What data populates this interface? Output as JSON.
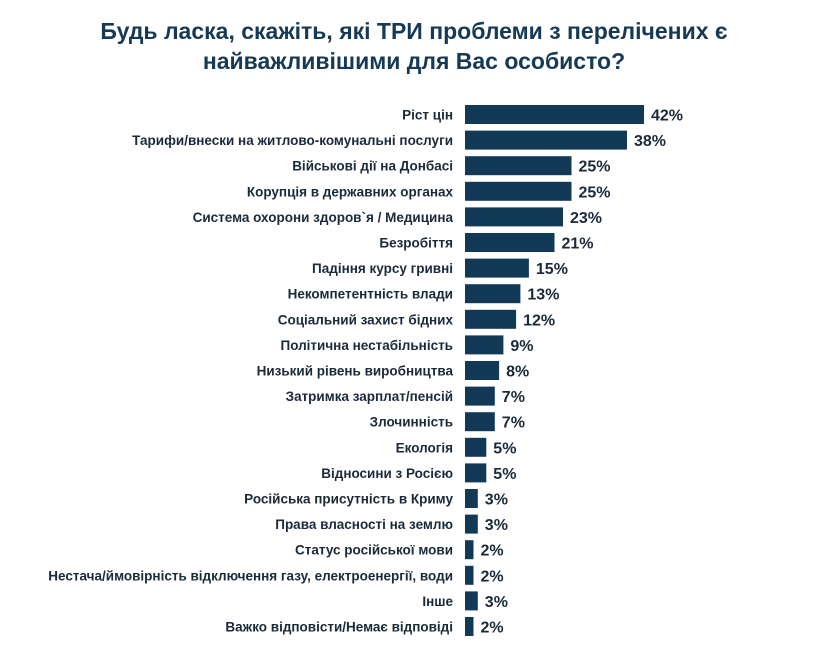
{
  "title_lines": [
    "Будь ласка, скажіть, які ТРИ проблеми з перелічених є",
    "найважливішими для Вас особисто?"
  ],
  "colors": {
    "bar": "#123a57",
    "title": "#163955",
    "text": "#1a2a3a"
  },
  "chart_data": {
    "type": "bar",
    "orientation": "horizontal",
    "title": "Будь ласка, скажіть, які ТРИ проблеми з перелічених є найважливішими для Вас особисто?",
    "xlabel": "",
    "ylabel": "",
    "xlim": [
      0,
      42
    ],
    "grid": false,
    "legend": "none",
    "categories": [
      "Ріст цін",
      "Тарифи/внески на житлово-комунальні послуги",
      "Військові дії на Донбасі",
      "Корупція в державних органах",
      "Система охорони здоров`я / Медицина",
      "Безробіття",
      "Падіння курсу гривні",
      "Некомпетентність влади",
      "Соціальний захист бідних",
      "Політична нестабільність",
      "Низький рівень виробництва",
      "Затримка зарплат/пенсій",
      "Злочинність",
      "Екологія",
      "Відносини з Росією",
      "Російська присутність в Криму",
      "Права власності на землю",
      "Статус російської мови",
      "Нестача/ймовірність відключення газу, електроенергії, води",
      "Інше",
      "Важко відповісти/Немає відповіді"
    ],
    "values": [
      42,
      38,
      25,
      25,
      23,
      21,
      15,
      13,
      12,
      9,
      8,
      7,
      7,
      5,
      5,
      3,
      3,
      2,
      2,
      3,
      2
    ],
    "value_labels": [
      "42%",
      "38%",
      "25%",
      "25%",
      "23%",
      "21%",
      "15%",
      "13%",
      "12%",
      "9%",
      "8%",
      "7%",
      "7%",
      "5%",
      "5%",
      "3%",
      "3%",
      "2%",
      "2%",
      "3%",
      "2%"
    ]
  }
}
